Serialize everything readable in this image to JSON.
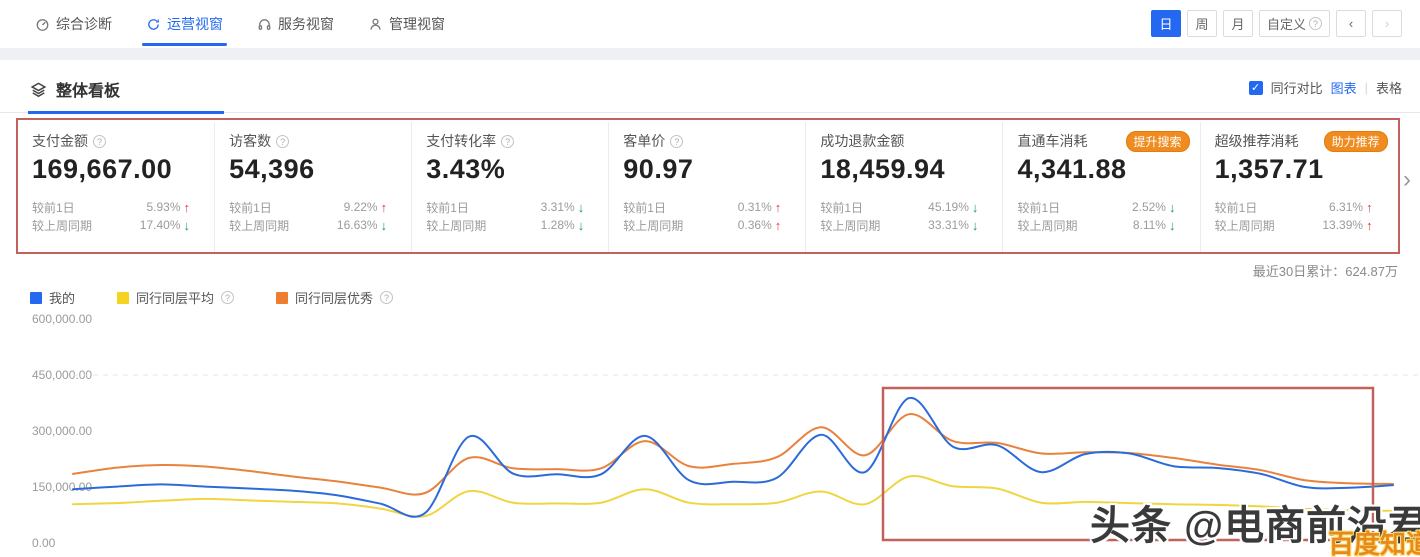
{
  "nav": {
    "tabs": [
      {
        "label": "综合诊断",
        "icon": "gauge-icon",
        "active": false
      },
      {
        "label": "运营视窗",
        "icon": "refresh-icon",
        "active": true
      },
      {
        "label": "服务视窗",
        "icon": "headset-icon",
        "active": false
      },
      {
        "label": "管理视窗",
        "icon": "person-icon",
        "active": false
      }
    ],
    "periods": [
      {
        "label": "日",
        "active": true
      },
      {
        "label": "周",
        "active": false
      },
      {
        "label": "月",
        "active": false
      },
      {
        "label": "自定义",
        "active": false,
        "help": true
      }
    ],
    "prev_label": "‹",
    "next_label": "›"
  },
  "board": {
    "title": "整体看板",
    "compare_label": "同行对比",
    "chart_toggle": "图表",
    "table_toggle": "表格",
    "checkbox_checked": "✓"
  },
  "cards": [
    {
      "label": "支付金额",
      "help": true,
      "badge": null,
      "value": "169,667.00",
      "rows": [
        {
          "label": "较前1日",
          "pct": "5.93%",
          "dir": "up"
        },
        {
          "label": "较上周同期",
          "pct": "17.40%",
          "dir": "down"
        }
      ]
    },
    {
      "label": "访客数",
      "help": true,
      "badge": null,
      "value": "54,396",
      "rows": [
        {
          "label": "较前1日",
          "pct": "9.22%",
          "dir": "up"
        },
        {
          "label": "较上周同期",
          "pct": "16.63%",
          "dir": "down"
        }
      ]
    },
    {
      "label": "支付转化率",
      "help": true,
      "badge": null,
      "value": "3.43%",
      "rows": [
        {
          "label": "较前1日",
          "pct": "3.31%",
          "dir": "down"
        },
        {
          "label": "较上周同期",
          "pct": "1.28%",
          "dir": "down"
        }
      ]
    },
    {
      "label": "客单价",
      "help": true,
      "badge": null,
      "value": "90.97",
      "rows": [
        {
          "label": "较前1日",
          "pct": "0.31%",
          "dir": "up"
        },
        {
          "label": "较上周同期",
          "pct": "0.36%",
          "dir": "up"
        }
      ]
    },
    {
      "label": "成功退款金额",
      "help": false,
      "badge": null,
      "value": "18,459.94",
      "rows": [
        {
          "label": "较前1日",
          "pct": "45.19%",
          "dir": "down"
        },
        {
          "label": "较上周同期",
          "pct": "33.31%",
          "dir": "down"
        }
      ]
    },
    {
      "label": "直通车消耗",
      "help": false,
      "badge": "提升搜索",
      "value": "4,341.88",
      "rows": [
        {
          "label": "较前1日",
          "pct": "2.52%",
          "dir": "down"
        },
        {
          "label": "较上周同期",
          "pct": "8.11%",
          "dir": "down"
        }
      ]
    },
    {
      "label": "超级推荐消耗",
      "help": false,
      "badge": "助力推荐",
      "value": "1,357.71",
      "rows": [
        {
          "label": "较前1日",
          "pct": "6.31%",
          "dir": "up"
        },
        {
          "label": "较上周同期",
          "pct": "13.39%",
          "dir": "up"
        }
      ]
    }
  ],
  "summary": {
    "recent_total": "最近30日累计：624.87万"
  },
  "legend": [
    {
      "name": "我的",
      "color": "#2468f2",
      "help": false
    },
    {
      "name": "同行同层平均",
      "color": "#f7d321",
      "help": true
    },
    {
      "name": "同行同层优秀",
      "color": "#ed7d31",
      "help": true
    }
  ],
  "watermark": {
    "main": "头条 @电商前沿君",
    "corner": "百度知道"
  },
  "arrows": {
    "up": "↑",
    "down": "↓"
  },
  "chart_data": {
    "type": "line",
    "x": [
      1,
      2,
      3,
      4,
      5,
      6,
      7,
      8,
      9,
      10,
      11,
      12,
      13,
      14,
      15,
      16,
      17,
      18,
      19,
      20,
      21,
      22,
      23,
      24,
      25,
      26,
      27,
      28,
      29,
      30,
      31
    ],
    "xticks_visible": false,
    "series": [
      {
        "name": "我的",
        "color": "#2b6bd9",
        "values": [
          144000,
          151000,
          157000,
          151000,
          146000,
          140000,
          128000,
          105000,
          80000,
          285000,
          186000,
          184000,
          184000,
          287000,
          168000,
          164000,
          175000,
          290000,
          190000,
          388000,
          258000,
          262000,
          190000,
          238000,
          240000,
          206000,
          201000,
          185000,
          150000,
          148000,
          155000
        ]
      },
      {
        "name": "同行同层平均",
        "color": "#f0d543",
        "values": [
          104000,
          107000,
          113000,
          118000,
          114000,
          110000,
          106000,
          92000,
          72000,
          139000,
          108000,
          106000,
          108000,
          144000,
          108000,
          104000,
          108000,
          138000,
          104000,
          178000,
          152000,
          146000,
          108000,
          110000,
          107000,
          104000,
          102000,
          98000,
          92000,
          88000,
          86000
        ]
      },
      {
        "name": "同行同层优秀",
        "color": "#e8823d",
        "values": [
          185000,
          202000,
          209000,
          205000,
          193000,
          178000,
          165000,
          148000,
          134000,
          228000,
          200000,
          198000,
          200000,
          273000,
          206000,
          212000,
          230000,
          310000,
          235000,
          345000,
          273000,
          268000,
          240000,
          243000,
          241000,
          228000,
          210000,
          195000,
          168000,
          160000,
          158000
        ]
      }
    ],
    "title": "",
    "xlabel": "",
    "ylabel": "",
    "ylim": [
      0,
      600000
    ],
    "yticks": [
      "600,000.00",
      "450,000.00",
      "300,000.00",
      "150,000.00",
      "0.00"
    ],
    "grid": "dashed line at 450000 only",
    "legend_position": "top-left",
    "annotation_box": {
      "note": "red highlight rectangle over right portion of chart"
    }
  }
}
